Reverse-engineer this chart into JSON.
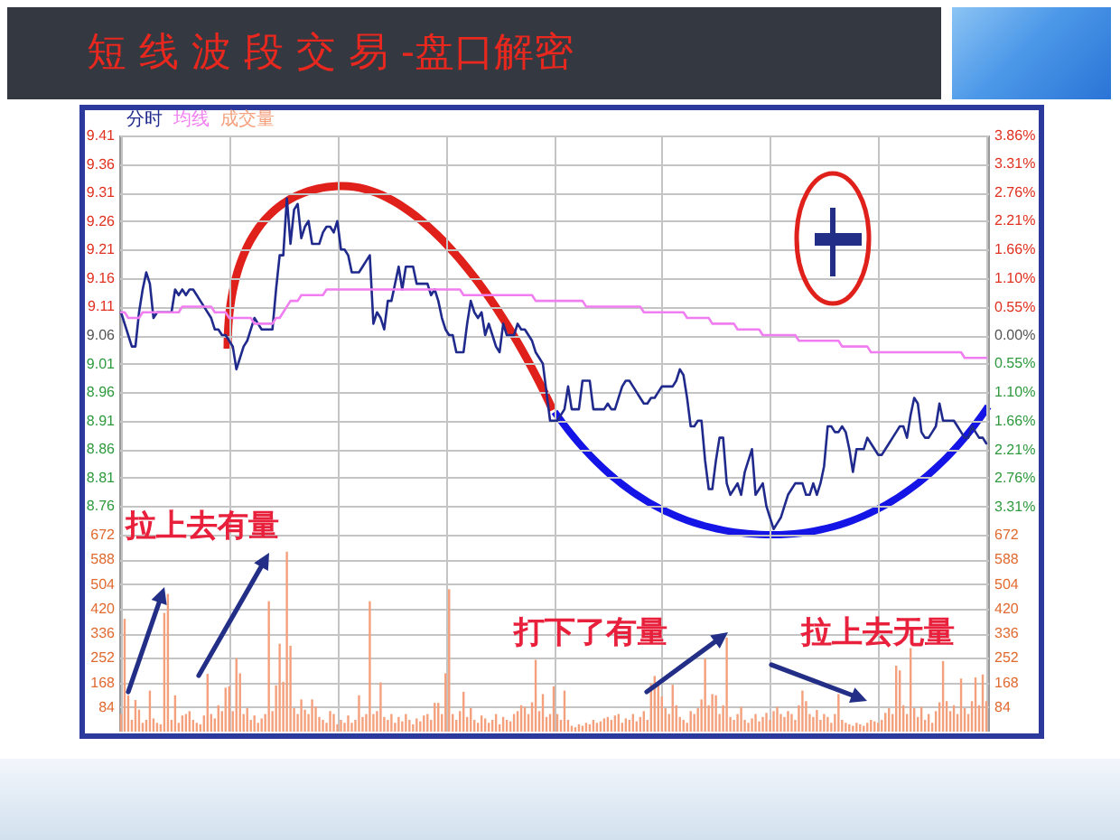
{
  "chart_data": [
    {
      "type": "line",
      "title": "短 线 波 段 交 易 -盘口解密",
      "grid": true,
      "tick_labels": "y",
      "categories": [
        null,
        null,
        null,
        null,
        null,
        null,
        null,
        null,
        null,
        null,
        null,
        null,
        null,
        null,
        null,
        null,
        null,
        null,
        null,
        null,
        null,
        null,
        null,
        null,
        null,
        null,
        null,
        null,
        null,
        null,
        null,
        null,
        null,
        null,
        null,
        null,
        null,
        null,
        null,
        null,
        null,
        null,
        null,
        null,
        null,
        null,
        null,
        null,
        null,
        null,
        null,
        null,
        null,
        null,
        null,
        null,
        null,
        null,
        null,
        null,
        null,
        null,
        null,
        null,
        null,
        null,
        null,
        null,
        null,
        null,
        null,
        null,
        null,
        null,
        null,
        null,
        null,
        null,
        null,
        null,
        null,
        null,
        null,
        null,
        null,
        null,
        null,
        null,
        null,
        null,
        null,
        null,
        null,
        null,
        null,
        null,
        null,
        null,
        null,
        null,
        null,
        null,
        null,
        null,
        null,
        null,
        null,
        null,
        null,
        null,
        null,
        null,
        null,
        null,
        null,
        null,
        null,
        null,
        null,
        null,
        null,
        null,
        null,
        null,
        null,
        null,
        null,
        null,
        null,
        null,
        null,
        null,
        null,
        null,
        null,
        null,
        null,
        null,
        null,
        null,
        null,
        null,
        null,
        null,
        null,
        null,
        null,
        null,
        null,
        null,
        null,
        null,
        null,
        null,
        null,
        null,
        null,
        null,
        null,
        null,
        null,
        null,
        null,
        null,
        null,
        null,
        null,
        null,
        null,
        null,
        null,
        null,
        null,
        null,
        null,
        null,
        null,
        null,
        null,
        null,
        null,
        null,
        null,
        null,
        null,
        null,
        null,
        null,
        null,
        null,
        null,
        null,
        null,
        null,
        null,
        null,
        null,
        null,
        null,
        null,
        null,
        null,
        null,
        null,
        null,
        null,
        null,
        null,
        null,
        null,
        null,
        null,
        null,
        null,
        null,
        null,
        null,
        null,
        null,
        null,
        null,
        null,
        null,
        null,
        null,
        null,
        null,
        null,
        null,
        null,
        null,
        null,
        null,
        null,
        null,
        null,
        null,
        null,
        null,
        null,
        null
      ],
      "ylim": [
        8.71,
        9.41
      ],
      "yticks": [
        9.41,
        9.36,
        9.31,
        9.26,
        9.21,
        9.16,
        9.11,
        9.06,
        9.01,
        8.96,
        8.91,
        8.86,
        8.81,
        8.76
      ],
      "y2lim": [
        -3.86,
        3.86
      ],
      "y2ticks": [
        {
          "value": 3.86,
          "label": "3.86%"
        },
        {
          "value": 3.31,
          "label": "3.31%"
        },
        {
          "value": 2.76,
          "label": "2.76%"
        },
        {
          "value": 2.21,
          "label": "2.21%"
        },
        {
          "value": 1.66,
          "label": "1.66%"
        },
        {
          "value": 1.1,
          "label": "1.10%"
        },
        {
          "value": 0.55,
          "label": "0.55%"
        },
        {
          "value": 0,
          "label": "0.00%"
        },
        {
          "value": -0.55,
          "label": "0.55%"
        },
        {
          "value": -1.1,
          "label": "1.10%"
        },
        {
          "value": -1.66,
          "label": "1.66%"
        },
        {
          "value": -2.21,
          "label": "2.21%"
        },
        {
          "value": -2.76,
          "label": "2.76%"
        },
        {
          "value": -3.31,
          "label": "3.31%"
        }
      ],
      "series": [
        {
          "name": "分时",
          "color": "#1f2a8c",
          "values": [
            9.1,
            9.08,
            9.06,
            9.04,
            9.04,
            9.1,
            9.14,
            9.17,
            9.15,
            9.09,
            9.1,
            9.1,
            9.1,
            9.1,
            9.1,
            9.14,
            9.13,
            9.14,
            9.13,
            9.14,
            9.14,
            9.13,
            9.12,
            9.11,
            9.1,
            9.09,
            9.07,
            9.07,
            9.06,
            9.06,
            9.05,
            9.04,
            9.0,
            9.02,
            9.04,
            9.05,
            9.07,
            9.09,
            9.08,
            9.07,
            9.07,
            9.07,
            9.07,
            9.14,
            9.2,
            9.2,
            9.3,
            9.22,
            9.28,
            9.29,
            9.23,
            9.25,
            9.26,
            9.22,
            9.22,
            9.22,
            9.24,
            9.25,
            9.25,
            9.24,
            9.26,
            9.21,
            9.21,
            9.2,
            9.17,
            9.17,
            9.17,
            9.18,
            9.19,
            9.2,
            9.08,
            9.1,
            9.09,
            9.07,
            9.12,
            9.12,
            9.15,
            9.18,
            9.14,
            9.18,
            9.18,
            9.18,
            9.15,
            9.15,
            9.15,
            9.15,
            9.13,
            9.14,
            9.12,
            9.09,
            9.07,
            9.06,
            9.06,
            9.03,
            9.03,
            9.03,
            9.08,
            9.12,
            9.1,
            9.09,
            9.1,
            9.06,
            9.08,
            9.06,
            9.04,
            9.03,
            9.08,
            9.06,
            9.06,
            9.06,
            9.08,
            9.07,
            9.07,
            9.06,
            9.05,
            9.03,
            9.02,
            9.01,
            8.96,
            8.91,
            8.91,
            8.91,
            8.92,
            8.93,
            8.97,
            8.93,
            8.93,
            8.93,
            8.98,
            8.98,
            8.98,
            8.93,
            8.93,
            8.93,
            8.93,
            8.94,
            8.93,
            8.93,
            8.95,
            8.97,
            8.98,
            8.98,
            8.97,
            8.96,
            8.95,
            8.94,
            8.94,
            8.95,
            8.95,
            8.96,
            8.97,
            8.97,
            8.97,
            8.97,
            8.98,
            9.0,
            8.99,
            8.95,
            8.9,
            8.9,
            8.91,
            8.91,
            8.84,
            8.79,
            8.79,
            8.84,
            8.88,
            8.88,
            8.8,
            8.78,
            8.79,
            8.8,
            8.78,
            8.82,
            8.84,
            8.86,
            8.78,
            8.79,
            8.8,
            8.76,
            8.74,
            8.72,
            8.73,
            8.74,
            8.76,
            8.78,
            8.79,
            8.8,
            8.8,
            8.8,
            8.78,
            8.78,
            8.8,
            8.78,
            8.8,
            8.83,
            8.9,
            8.9,
            8.89,
            8.89,
            8.9,
            8.89,
            8.86,
            8.82,
            8.86,
            8.86,
            8.86,
            8.88,
            8.87,
            8.86,
            8.85,
            8.85,
            8.86,
            8.87,
            8.88,
            8.89,
            8.9,
            8.9,
            8.88,
            8.92,
            8.95,
            8.94,
            8.89,
            8.88,
            8.88,
            8.89,
            8.9,
            8.94,
            8.91,
            8.91,
            8.91,
            8.91,
            8.9,
            8.89,
            8.88,
            8.88,
            8.9,
            8.89,
            8.88,
            8.88,
            8.87
          ]
        },
        {
          "name": "均线",
          "color": "#f07ef0",
          "values": [
            9.1,
            9.1,
            9.09,
            9.09,
            9.09,
            9.09,
            9.1,
            9.1,
            9.1,
            9.1,
            9.1,
            9.1,
            9.1,
            9.1,
            9.1,
            9.1,
            9.1,
            9.11,
            9.11,
            9.11,
            9.11,
            9.11,
            9.11,
            9.11,
            9.11,
            9.11,
            9.1,
            9.1,
            9.1,
            9.1,
            9.09,
            9.09,
            9.09,
            9.09,
            9.09,
            9.09,
            9.09,
            9.08,
            9.08,
            9.08,
            9.08,
            9.08,
            9.08,
            9.09,
            9.09,
            9.1,
            9.11,
            9.12,
            9.12,
            9.12,
            9.13,
            9.13,
            9.13,
            9.13,
            9.13,
            9.13,
            9.13,
            9.14,
            9.14,
            9.14,
            9.14,
            9.14,
            9.14,
            9.14,
            9.14,
            9.14,
            9.14,
            9.14,
            9.14,
            9.14,
            9.14,
            9.14,
            9.14,
            9.14,
            9.14,
            9.14,
            9.14,
            9.14,
            9.14,
            9.14,
            9.14,
            9.14,
            9.14,
            9.14,
            9.14,
            9.14,
            9.14,
            9.14,
            9.14,
            9.14,
            9.14,
            9.14,
            9.14,
            9.14,
            9.14,
            9.13,
            9.13,
            9.13,
            9.13,
            9.13,
            9.13,
            9.13,
            9.13,
            9.13,
            9.13,
            9.13,
            9.13,
            9.13,
            9.13,
            9.13,
            9.13,
            9.13,
            9.13,
            9.13,
            9.13,
            9.12,
            9.12,
            9.12,
            9.12,
            9.12,
            9.12,
            9.12,
            9.12,
            9.12,
            9.12,
            9.12,
            9.12,
            9.12,
            9.12,
            9.11,
            9.11,
            9.11,
            9.11,
            9.11,
            9.11,
            9.11,
            9.11,
            9.11,
            9.11,
            9.11,
            9.11,
            9.11,
            9.11,
            9.11,
            9.11,
            9.1,
            9.1,
            9.1,
            9.1,
            9.1,
            9.1,
            9.1,
            9.1,
            9.1,
            9.1,
            9.1,
            9.1,
            9.09,
            9.09,
            9.09,
            9.09,
            9.09,
            9.09,
            9.09,
            9.08,
            9.08,
            9.08,
            9.08,
            9.08,
            9.08,
            9.08,
            9.07,
            9.07,
            9.07,
            9.07,
            9.07,
            9.07,
            9.07,
            9.06,
            9.06,
            9.06,
            9.06,
            9.06,
            9.06,
            9.06,
            9.06,
            9.06,
            9.06,
            9.05,
            9.05,
            9.05,
            9.05,
            9.05,
            9.05,
            9.05,
            9.05,
            9.05,
            9.05,
            9.05,
            9.05,
            9.04,
            9.04,
            9.04,
            9.04,
            9.04,
            9.04,
            9.04,
            9.04,
            9.03,
            9.03,
            9.03,
            9.03,
            9.03,
            9.03,
            9.03,
            9.03,
            9.03,
            9.03,
            9.03,
            9.03,
            9.03,
            9.03,
            9.03,
            9.03,
            9.03,
            9.03,
            9.03,
            9.03,
            9.03,
            9.03,
            9.03,
            9.03,
            9.03,
            9.03,
            9.02,
            9.02,
            9.02,
            9.02,
            9.02,
            9.02,
            9.02
          ]
        }
      ]
    },
    {
      "type": "bar",
      "grid": true,
      "tick_labels": "y",
      "categories": [
        null,
        null,
        null,
        null,
        null,
        null,
        null,
        null,
        null,
        null,
        null,
        null,
        null,
        null,
        null,
        null,
        null,
        null,
        null,
        null,
        null,
        null,
        null,
        null,
        null,
        null,
        null,
        null,
        null,
        null,
        null,
        null,
        null,
        null,
        null,
        null,
        null,
        null,
        null,
        null,
        null,
        null,
        null,
        null,
        null,
        null,
        null,
        null,
        null,
        null,
        null,
        null,
        null,
        null,
        null,
        null,
        null,
        null,
        null,
        null,
        null,
        null,
        null,
        null,
        null,
        null,
        null,
        null,
        null,
        null,
        null,
        null,
        null,
        null,
        null,
        null,
        null,
        null,
        null,
        null,
        null,
        null,
        null,
        null,
        null,
        null,
        null,
        null,
        null,
        null,
        null,
        null,
        null,
        null,
        null,
        null,
        null,
        null,
        null,
        null,
        null,
        null,
        null,
        null,
        null,
        null,
        null,
        null,
        null,
        null,
        null,
        null,
        null,
        null,
        null,
        null,
        null,
        null,
        null,
        null,
        null,
        null,
        null,
        null,
        null,
        null,
        null,
        null,
        null,
        null,
        null,
        null,
        null,
        null,
        null,
        null,
        null,
        null,
        null,
        null,
        null,
        null,
        null,
        null,
        null,
        null,
        null,
        null,
        null,
        null,
        null,
        null,
        null,
        null,
        null,
        null,
        null,
        null,
        null,
        null,
        null,
        null,
        null,
        null,
        null,
        null,
        null,
        null,
        null,
        null,
        null,
        null,
        null,
        null,
        null,
        null,
        null,
        null,
        null,
        null,
        null,
        null,
        null,
        null,
        null,
        null,
        null,
        null,
        null,
        null,
        null,
        null,
        null,
        null,
        null,
        null,
        null,
        null,
        null,
        null,
        null,
        null,
        null,
        null,
        null,
        null,
        null,
        null,
        null,
        null,
        null,
        null,
        null,
        null,
        null,
        null,
        null,
        null,
        null,
        null,
        null,
        null,
        null,
        null,
        null,
        null,
        null,
        null,
        null,
        null,
        null,
        null,
        null,
        null,
        null,
        null,
        null,
        null,
        null,
        null,
        null
      ],
      "ylim": [
        0,
        672
      ],
      "yticks": [
        672,
        588,
        504,
        420,
        336,
        252,
        168,
        84
      ],
      "y2lim": [
        0,
        672
      ],
      "y2ticks": [
        672,
        588,
        504,
        420,
        336,
        252,
        168,
        84
      ],
      "series": [
        {
          "name": "成交量",
          "color": "#f4a07c",
          "values": [
            60,
            385,
            124,
            40,
            108,
            75,
            30,
            40,
            140,
            45,
            30,
            25,
            405,
            470,
            40,
            124,
            30,
            55,
            60,
            70,
            40,
            30,
            25,
            55,
            197,
            60,
            45,
            90,
            70,
            150,
            155,
            70,
            250,
            199,
            60,
            80,
            40,
            55,
            30,
            45,
            60,
            445,
            70,
            158,
            300,
            170,
            614,
            293,
            80,
            60,
            110,
            75,
            60,
            110,
            85,
            50,
            40,
            30,
            70,
            60,
            25,
            40,
            30,
            55,
            30,
            40,
            124,
            50,
            60,
            445,
            60,
            70,
            168,
            50,
            40,
            60,
            30,
            50,
            35,
            60,
            40,
            25,
            45,
            35,
            55,
            60,
            40,
            98,
            98,
            60,
            199,
            486,
            60,
            40,
            70,
            136,
            50,
            80,
            40,
            30,
            55,
            45,
            30,
            40,
            60,
            25,
            50,
            40,
            35,
            60,
            70,
            90,
            84,
            60,
            100,
            245,
            70,
            128,
            50,
            60,
            155,
            60,
            40,
            140,
            40,
            20,
            15,
            25,
            20,
            30,
            25,
            40,
            30,
            35,
            45,
            50,
            40,
            55,
            60,
            30,
            45,
            40,
            60,
            35,
            50,
            70,
            40,
            164,
            190,
            168,
            120,
            80,
            60,
            160,
            90,
            50,
            40,
            30,
            70,
            60,
            80,
            110,
            249,
            90,
            128,
            124,
            60,
            90,
            321,
            50,
            40,
            60,
            84,
            40,
            30,
            45,
            60,
            35,
            50,
            64,
            40,
            70,
            84,
            60,
            50,
            70,
            60,
            40,
            90,
            140,
            104,
            60,
            50,
            74,
            40,
            60,
            50,
            30,
            60,
            128,
            40,
            30,
            25,
            20,
            30,
            25,
            20,
            30,
            40,
            35,
            30,
            40,
            64,
            80,
            60,
            225,
            209,
            90,
            60,
            285,
            80,
            50,
            84,
            40,
            60,
            30,
            70,
            100,
            241,
            104,
            70,
            90,
            60,
            181,
            80,
            60,
            104,
            185,
            90,
            195,
            104
          ]
        }
      ],
      "annotations": [
        "拉上去有量",
        "打下了有量",
        "拉上去无量"
      ]
    }
  ]
}
